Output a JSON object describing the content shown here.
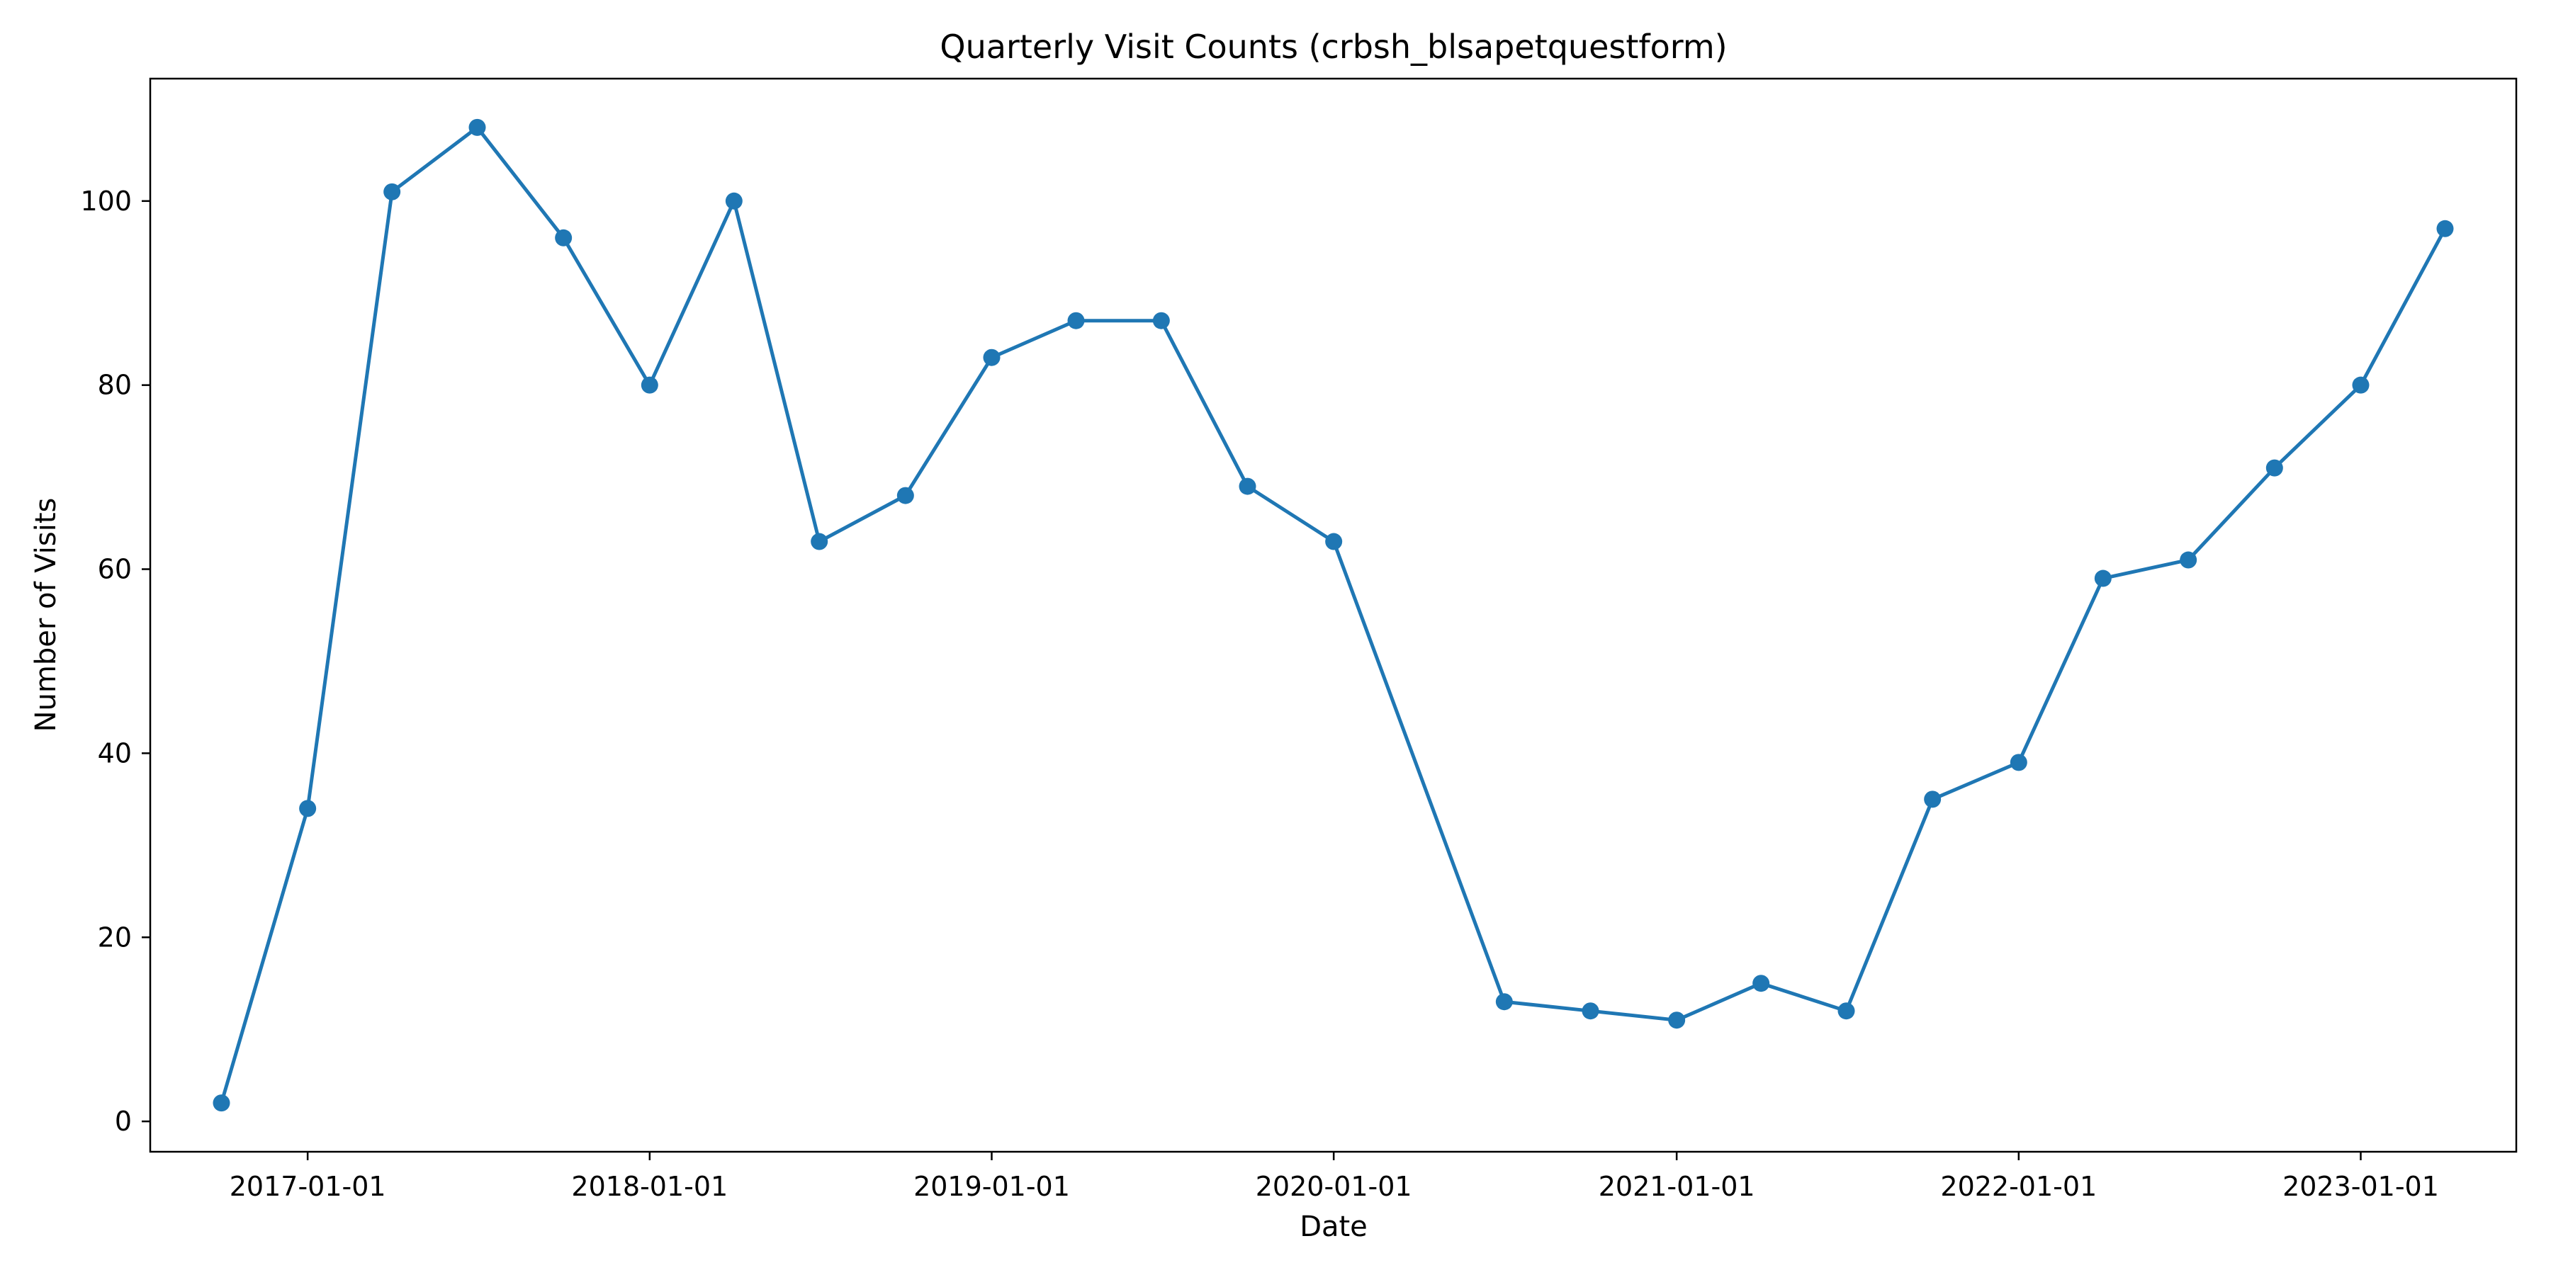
{
  "chart_data": {
    "type": "line",
    "title": "Quarterly Visit Counts (crbsh_blsapetquestform)",
    "xlabel": "Date",
    "ylabel": "Number of Visits",
    "x": [
      "2016-10-01",
      "2017-01-01",
      "2017-04-01",
      "2017-07-01",
      "2017-10-01",
      "2018-01-01",
      "2018-04-01",
      "2018-07-01",
      "2018-10-01",
      "2019-01-01",
      "2019-04-01",
      "2019-07-01",
      "2019-10-01",
      "2020-01-01",
      "2020-07-01",
      "2020-10-01",
      "2021-01-01",
      "2021-04-01",
      "2021-07-01",
      "2021-10-01",
      "2022-01-01",
      "2022-04-01",
      "2022-07-01",
      "2022-10-01",
      "2023-01-01",
      "2023-04-01"
    ],
    "series": [
      {
        "values": [
          2,
          34,
          101,
          108,
          96,
          80,
          100,
          63,
          68,
          83,
          87,
          87,
          69,
          63,
          13,
          12,
          11,
          15,
          12,
          35,
          39,
          59,
          61,
          71,
          80,
          97
        ]
      }
    ],
    "x_ticks": [
      "2017-01-01",
      "2018-01-01",
      "2019-01-01",
      "2020-01-01",
      "2021-01-01",
      "2022-01-01",
      "2023-01-01"
    ],
    "y_ticks": [
      0,
      20,
      40,
      60,
      80,
      100
    ],
    "xlim": [
      "2016-07-17",
      "2023-06-16"
    ],
    "ylim": [
      -3.3,
      113.3
    ],
    "grid": false,
    "legend": "none",
    "colors": {
      "series": "#1f77b4",
      "axes": "#000000",
      "background": "#ffffff"
    }
  }
}
